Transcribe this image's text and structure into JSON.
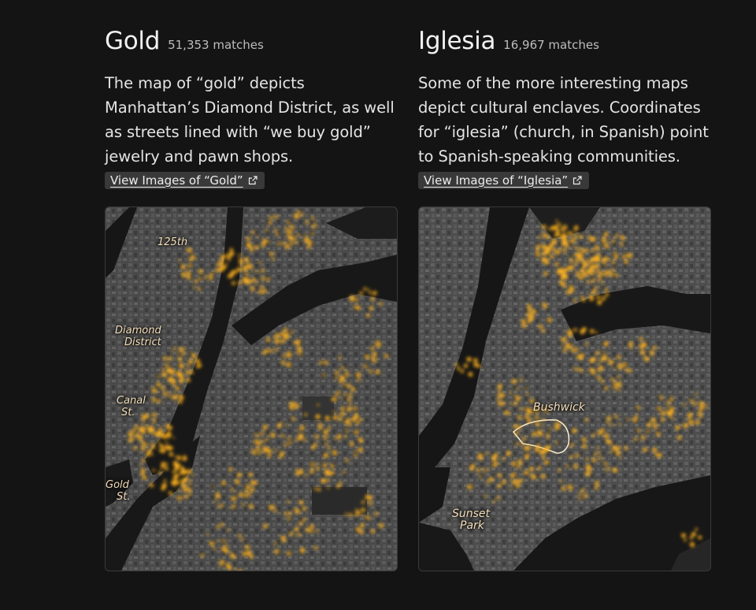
{
  "gold": {
    "title": "Gold",
    "count": "51,353 matches",
    "description": "The map of “gold” depicts Manhattan’s Diamond District, as well as streets lined with “we buy gold” jewelry and pawn shops.",
    "link_label": "View Images of “Gold”",
    "link_icon": "external-link-icon",
    "map_labels": {
      "l125": "125th",
      "diamond1": "Diamond",
      "diamond2": "District",
      "canal1": "Canal",
      "canal2": "St.",
      "goldst1": "Gold",
      "goldst2": "St."
    }
  },
  "iglesia": {
    "title": "Iglesia",
    "count": "16,967 matches",
    "description": "Some of the more interesting maps depict cultural enclaves. Coordinates for “iglesia” (church, in Spanish) point to Spanish-speaking communities.",
    "link_label": "View Images of “Iglesia”",
    "link_icon": "external-link-icon",
    "map_labels": {
      "bushwick": "Bushwick",
      "sunset1": "Sunset",
      "sunset2": "Park"
    }
  },
  "colors": {
    "background": "#141414",
    "accent_glow": "#ffb21e",
    "button_bg": "#393939"
  }
}
